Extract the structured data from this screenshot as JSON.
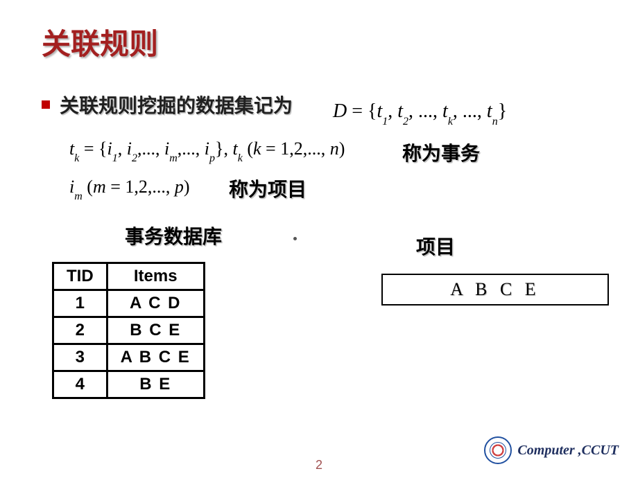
{
  "title": "关联规则",
  "bullet_text": "关联规则挖掘的数据集记为",
  "formula_D": "D = {t₁, t₂, ..., tₖ, ..., tₙ}",
  "formula_tk": "tₖ = {i₁, i₂, ..., iₘ, ..., iₚ}, tₖ (k = 1,2,...,n)",
  "label_transaction": "称为事务",
  "formula_im": "iₘ (m = 1,2,..., p)",
  "label_item": "称为项目",
  "db_label": "事务数据库",
  "items_label": "项目",
  "table": {
    "headers": [
      "TID",
      "Items"
    ],
    "rows": [
      [
        "1",
        "A C D"
      ],
      [
        "2",
        "B C E"
      ],
      [
        "3",
        "A B C E"
      ],
      [
        "4",
        "B E"
      ]
    ]
  },
  "item_box": "A   B   C    E",
  "page_number": "2",
  "footer_text": "Computer ,CCUT",
  "colors": {
    "title": "#a32020",
    "bullet": "#c00000",
    "footer": "#203060",
    "pagenum": "#a05050"
  }
}
